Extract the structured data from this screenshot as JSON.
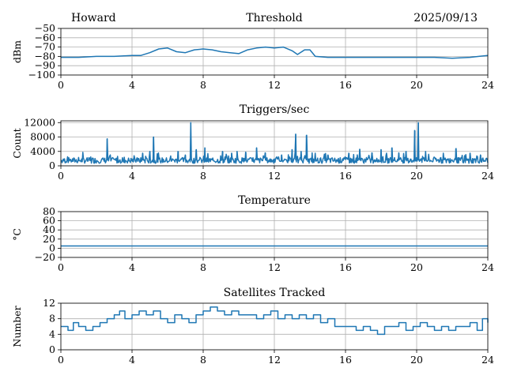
{
  "header": {
    "station": "Howard",
    "date": "2025/09/13"
  },
  "colors": {
    "series": "#1f77b4",
    "grid": "#b0b0b0"
  },
  "chart_data": [
    {
      "type": "line",
      "title": "Threshold",
      "xlabel": "",
      "ylabel": "dBm",
      "xlim": [
        0,
        24
      ],
      "ylim": [
        -100,
        -50
      ],
      "xticks": [
        0,
        4,
        8,
        12,
        16,
        20,
        24
      ],
      "yticks": [
        -100,
        -90,
        -80,
        -70,
        -60,
        -50
      ],
      "ytick_labels": [
        "−100",
        "−90",
        "−80",
        "−70",
        "−60",
        "−50"
      ],
      "grid": true,
      "series": [
        {
          "x": [
            0,
            1,
            2,
            3,
            4,
            4.5,
            5,
            5.5,
            6,
            6.5,
            7,
            7.5,
            8,
            8.5,
            9,
            9.5,
            10,
            10.5,
            11,
            11.5,
            12,
            12.5,
            13,
            13.3,
            13.7,
            14,
            14.3,
            15,
            16,
            17,
            18,
            19,
            20,
            21,
            22,
            23,
            23.5,
            24
          ],
          "y": [
            -81,
            -81,
            -80,
            -80,
            -79,
            -79,
            -76,
            -72,
            -71,
            -75,
            -76,
            -73,
            -72,
            -73,
            -75,
            -76,
            -77,
            -73,
            -71,
            -70,
            -71,
            -70,
            -74,
            -78,
            -73,
            -73,
            -80,
            -81,
            -81,
            -81,
            -81,
            -81,
            -81,
            -81,
            -82,
            -81,
            -80,
            -79
          ]
        }
      ]
    },
    {
      "type": "line",
      "title": "Triggers/sec",
      "xlabel": "",
      "ylabel": "Count",
      "xlim": [
        0,
        24
      ],
      "ylim": [
        0,
        12500
      ],
      "xticks": [
        0,
        4,
        8,
        12,
        16,
        20,
        24
      ],
      "yticks": [
        0,
        4000,
        8000,
        12000
      ],
      "grid": true,
      "baseline": 1500,
      "spikes": [
        {
          "x": 2.6,
          "y": 7500
        },
        {
          "x": 4.6,
          "y": 3500
        },
        {
          "x": 5.0,
          "y": 4000
        },
        {
          "x": 5.2,
          "y": 8000
        },
        {
          "x": 6.6,
          "y": 4000
        },
        {
          "x": 7.0,
          "y": 3000
        },
        {
          "x": 7.3,
          "y": 12000
        },
        {
          "x": 7.6,
          "y": 4500
        },
        {
          "x": 8.1,
          "y": 5000
        },
        {
          "x": 9.1,
          "y": 4000
        },
        {
          "x": 9.6,
          "y": 3500
        },
        {
          "x": 9.9,
          "y": 4000
        },
        {
          "x": 10.4,
          "y": 3800
        },
        {
          "x": 11.0,
          "y": 5000
        },
        {
          "x": 11.5,
          "y": 3600
        },
        {
          "x": 12.4,
          "y": 3000
        },
        {
          "x": 13.0,
          "y": 4500
        },
        {
          "x": 13.2,
          "y": 8800
        },
        {
          "x": 13.5,
          "y": 4000
        },
        {
          "x": 13.8,
          "y": 8500
        },
        {
          "x": 14.3,
          "y": 3500
        },
        {
          "x": 15.0,
          "y": 3000
        },
        {
          "x": 16.2,
          "y": 3500
        },
        {
          "x": 16.8,
          "y": 4600
        },
        {
          "x": 17.5,
          "y": 3600
        },
        {
          "x": 18.0,
          "y": 4500
        },
        {
          "x": 18.3,
          "y": 3500
        },
        {
          "x": 18.6,
          "y": 5000
        },
        {
          "x": 19.0,
          "y": 3600
        },
        {
          "x": 19.4,
          "y": 4000
        },
        {
          "x": 19.9,
          "y": 9800
        },
        {
          "x": 20.1,
          "y": 12000
        },
        {
          "x": 20.5,
          "y": 4000
        },
        {
          "x": 21.5,
          "y": 3500
        },
        {
          "x": 22.2,
          "y": 4800
        },
        {
          "x": 23.0,
          "y": 3500
        },
        {
          "x": 23.6,
          "y": 3000
        }
      ]
    },
    {
      "type": "line",
      "title": "Temperature",
      "xlabel": "",
      "ylabel": "°C",
      "xlim": [
        0,
        24
      ],
      "ylim": [
        -20,
        80
      ],
      "xticks": [
        0,
        4,
        8,
        12,
        16,
        20,
        24
      ],
      "yticks": [
        -20,
        0,
        20,
        40,
        60,
        80
      ],
      "ytick_labels": [
        "−20",
        "0",
        "20",
        "40",
        "60",
        "80"
      ],
      "grid": true,
      "series": [
        {
          "x": [
            0,
            24
          ],
          "y": [
            5,
            5
          ]
        }
      ]
    },
    {
      "type": "line",
      "title": "Satellites Tracked",
      "xlabel": "",
      "ylabel": "Number",
      "xlim": [
        0,
        24
      ],
      "ylim": [
        0,
        12
      ],
      "xticks": [
        0,
        4,
        8,
        12,
        16,
        20,
        24
      ],
      "yticks": [
        0,
        4,
        8,
        12
      ],
      "grid": true,
      "series": [
        {
          "x": [
            0,
            0.4,
            0.7,
            1.0,
            1.4,
            1.8,
            2.2,
            2.6,
            3.0,
            3.3,
            3.6,
            4.0,
            4.4,
            4.8,
            5.2,
            5.6,
            6.0,
            6.4,
            6.8,
            7.2,
            7.6,
            8.0,
            8.4,
            8.8,
            9.2,
            9.6,
            10.0,
            10.5,
            11.0,
            11.4,
            11.8,
            12.2,
            12.6,
            13.0,
            13.4,
            13.8,
            14.2,
            14.6,
            15.0,
            15.4,
            15.8,
            16.2,
            16.6,
            17.0,
            17.4,
            17.8,
            18.2,
            18.6,
            19.0,
            19.4,
            19.8,
            20.2,
            20.6,
            21.0,
            21.4,
            21.8,
            22.2,
            22.6,
            23.0,
            23.4,
            23.7,
            24.0
          ],
          "y": [
            6,
            5,
            7,
            6,
            5,
            6,
            7,
            8,
            9,
            10,
            8,
            9,
            10,
            9,
            10,
            8,
            7,
            9,
            8,
            7,
            9,
            10,
            11,
            10,
            9,
            10,
            9,
            9,
            8,
            9,
            10,
            8,
            9,
            8,
            9,
            8,
            9,
            7,
            8,
            6,
            6,
            6,
            5,
            6,
            5,
            4,
            6,
            6,
            7,
            5,
            6,
            7,
            6,
            5,
            6,
            5,
            6,
            6,
            7,
            5,
            8,
            7
          ]
        }
      ]
    }
  ]
}
